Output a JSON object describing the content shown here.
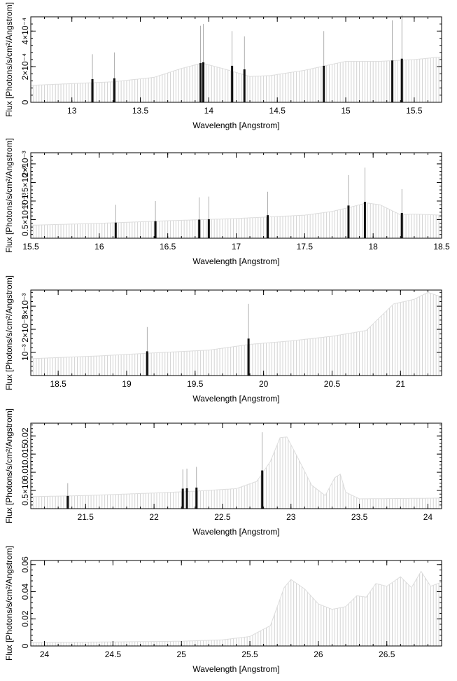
{
  "chart_data": [
    {
      "type": "bar",
      "xlabel": "Wavelength [Angstrom]",
      "ylabel": "Flux [Photons/s/cm²/Angstrom]",
      "xlim": [
        12.7,
        15.7
      ],
      "ylim": [
        0,
        0.00048
      ],
      "xticks": [
        13,
        13.5,
        14,
        14.5,
        15,
        15.5
      ],
      "xtick_labels": [
        "13",
        "13.5",
        "14",
        "14.5",
        "15",
        "15.5"
      ],
      "yticks": [
        0,
        0.0002,
        0.0004
      ],
      "ytick_labels": [
        "0",
        "2×10⁻⁴",
        "4×10⁻⁴"
      ],
      "continuum": {
        "x": [
          12.7,
          13.0,
          13.3,
          13.6,
          13.8,
          13.95,
          14.1,
          14.3,
          14.45,
          14.7,
          15.0,
          15.25,
          15.5,
          15.7
        ],
        "y": [
          9.5e-05,
          0.000105,
          0.000115,
          0.00014,
          0.00019,
          0.00022,
          0.00019,
          0.000145,
          0.00015,
          0.00018,
          0.00023,
          0.00023,
          0.00024,
          0.000255
        ]
      },
      "lines": [
        {
          "x": 13.15,
          "flux": 0.00013,
          "peak": 0.00027
        },
        {
          "x": 13.31,
          "flux": 0.000135,
          "peak": 0.00028
        },
        {
          "x": 13.94,
          "flux": 0.00022,
          "peak": 0.00043
        },
        {
          "x": 13.96,
          "flux": 0.000225,
          "peak": 0.00044
        },
        {
          "x": 14.17,
          "flux": 0.000205,
          "peak": 0.0004
        },
        {
          "x": 14.26,
          "flux": 0.000185,
          "peak": 0.00037
        },
        {
          "x": 14.84,
          "flux": 0.000205,
          "peak": 0.0004
        },
        {
          "x": 15.34,
          "flux": 0.000235,
          "peak": 0.00046
        },
        {
          "x": 15.41,
          "flux": 0.000245,
          "peak": 0.00049
        }
      ]
    },
    {
      "type": "bar",
      "xlabel": "Wavelength [Angstrom]",
      "ylabel": "Flux [Photons/s/cm²/Angstrom]",
      "xlim": [
        15.5,
        18.5
      ],
      "ylim": [
        0,
        0.0023
      ],
      "xticks": [
        15.5,
        16,
        16.5,
        17,
        17.5,
        18,
        18.5
      ],
      "xtick_labels": [
        "15.5",
        "16",
        "16.5",
        "17",
        "17.5",
        "18",
        "18.5"
      ],
      "yticks": [
        0.0005,
        0.001,
        0.0015,
        0.002
      ],
      "ytick_labels": [
        "0.5×10⁻³",
        "10⁻³",
        "1.5×10⁻³",
        "2×10⁻³"
      ],
      "continuum": {
        "x": [
          15.5,
          16.0,
          16.5,
          17.0,
          17.5,
          17.7,
          17.85,
          17.95,
          18.05,
          18.2,
          18.3,
          18.5
        ],
        "y": [
          0.00035,
          0.0004,
          0.00047,
          0.00053,
          0.00062,
          0.00072,
          0.00085,
          0.00095,
          0.0009,
          0.00063,
          0.00065,
          0.00062
        ]
      },
      "lines": [
        {
          "x": 16.12,
          "flux": 0.00042,
          "peak": 0.0009
        },
        {
          "x": 16.41,
          "flux": 0.00046,
          "peak": 0.001
        },
        {
          "x": 16.73,
          "flux": 0.0005,
          "peak": 0.0011
        },
        {
          "x": 16.8,
          "flux": 0.00051,
          "peak": 0.00112
        },
        {
          "x": 17.23,
          "flux": 0.00062,
          "peak": 0.00125
        },
        {
          "x": 17.82,
          "flux": 0.00088,
          "peak": 0.0017
        },
        {
          "x": 17.94,
          "flux": 0.00098,
          "peak": 0.0019
        },
        {
          "x": 18.21,
          "flux": 0.00068,
          "peak": 0.00132
        }
      ]
    },
    {
      "type": "bar",
      "xlabel": "Wavelength [Angstrom]",
      "ylabel": "Flux [Photons/s/cm²/Angstrom]",
      "xlim": [
        18.3,
        21.3
      ],
      "ylim": [
        0,
        0.0037
      ],
      "xticks": [
        18.5,
        19,
        19.5,
        20,
        20.5,
        21
      ],
      "xtick_labels": [
        "18.5",
        "19",
        "19.5",
        "20",
        "20.5",
        "21"
      ],
      "yticks": [
        0.001,
        0.002,
        0.003
      ],
      "ytick_labels": [
        "10⁻³",
        "2×10⁻³",
        "3×10⁻³"
      ],
      "continuum": {
        "x": [
          18.3,
          18.8,
          19.2,
          19.6,
          19.9,
          20.2,
          20.5,
          20.75,
          20.95,
          21.1,
          21.2,
          21.3
        ],
        "y": [
          0.00073,
          0.00085,
          0.00098,
          0.0011,
          0.00135,
          0.0015,
          0.0017,
          0.00195,
          0.0031,
          0.0033,
          0.0036,
          0.0034
        ]
      },
      "lines": [
        {
          "x": 19.15,
          "flux": 0.00105,
          "peak": 0.0021
        },
        {
          "x": 19.89,
          "flux": 0.0016,
          "peak": 0.0031
        }
      ]
    },
    {
      "type": "bar",
      "xlabel": "Wavelength [Angstrom]",
      "ylabel": "Flux [Photons/s/cm²/Angstrom]",
      "xlim": [
        21.1,
        24.1
      ],
      "ylim": [
        0,
        0.0235
      ],
      "xticks": [
        21.5,
        22,
        22.5,
        23,
        23.5,
        24
      ],
      "xtick_labels": [
        "21.5",
        "22",
        "22.5",
        "23",
        "23.5",
        "24"
      ],
      "yticks": [
        0.005,
        0.01,
        0.015,
        0.02
      ],
      "ytick_labels": [
        "0.5×10⁻",
        "0.01",
        "0.015",
        "0.02"
      ],
      "continuum": {
        "x": [
          21.1,
          21.5,
          22.0,
          22.3,
          22.6,
          22.75,
          22.85,
          22.92,
          22.97,
          23.05,
          23.15,
          23.25,
          23.32,
          23.36,
          23.4,
          23.5,
          24.1
        ],
        "y": [
          0.0033,
          0.0036,
          0.0043,
          0.0048,
          0.0055,
          0.0075,
          0.013,
          0.0195,
          0.0197,
          0.014,
          0.0065,
          0.0036,
          0.0085,
          0.0095,
          0.0045,
          0.0027,
          0.0029
        ]
      },
      "lines": [
        {
          "x": 21.37,
          "flux": 0.0035,
          "peak": 0.007
        },
        {
          "x": 22.21,
          "flux": 0.0055,
          "peak": 0.0108
        },
        {
          "x": 22.24,
          "flux": 0.0056,
          "peak": 0.011
        },
        {
          "x": 22.31,
          "flux": 0.0058,
          "peak": 0.0115
        },
        {
          "x": 22.79,
          "flux": 0.0105,
          "peak": 0.021
        }
      ]
    },
    {
      "type": "bar",
      "xlabel": "Wavelength [Angstrom]",
      "ylabel": "Flux [Photons/s/cm²/Angstrom]",
      "xlim": [
        23.9,
        26.9
      ],
      "ylim": [
        0,
        0.063
      ],
      "xticks": [
        24,
        24.5,
        25,
        25.5,
        26,
        26.5
      ],
      "xtick_labels": [
        "24",
        "24.5",
        "25",
        "25.5",
        "26",
        "26.5"
      ],
      "yticks": [
        0,
        0.02,
        0.04,
        0.06
      ],
      "ytick_labels": [
        "0",
        "0.02",
        "0.04",
        "0.06"
      ],
      "continuum": {
        "x": [
          23.9,
          24.5,
          25.0,
          25.3,
          25.5,
          25.65,
          25.75,
          25.8,
          25.9,
          26.0,
          26.1,
          26.2,
          26.28,
          26.35,
          26.42,
          26.5,
          26.6,
          26.68,
          26.75,
          26.82,
          26.9
        ],
        "y": [
          0.0025,
          0.003,
          0.0035,
          0.0045,
          0.007,
          0.015,
          0.043,
          0.049,
          0.042,
          0.031,
          0.027,
          0.029,
          0.037,
          0.036,
          0.046,
          0.044,
          0.051,
          0.043,
          0.055,
          0.044,
          0.047
        ]
      },
      "lines": []
    }
  ]
}
